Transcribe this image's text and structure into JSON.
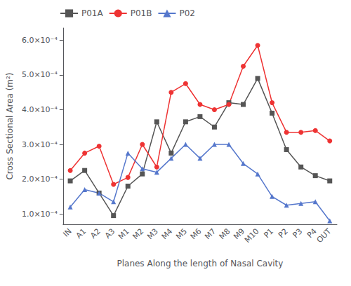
{
  "chart_data": {
    "type": "line",
    "xlabel": "Planes Along the length of Nasal Cavity",
    "ylabel": "Cross Sectional Area (m²)",
    "categories": [
      "IN",
      "A1",
      "A2",
      "A3",
      "M1",
      "M2",
      "M3",
      "M4",
      "M5",
      "M6",
      "M7",
      "M8",
      "M9",
      "M10",
      "P1",
      "P2",
      "P3",
      "P4",
      "OUT"
    ],
    "series": [
      {
        "name": "P01A",
        "color": "#555555",
        "marker": "square",
        "values": [
          0.000195,
          0.000225,
          0.00016,
          9.5e-05,
          0.00018,
          0.000215,
          0.000365,
          0.000275,
          0.000365,
          0.00038,
          0.00035,
          0.00042,
          0.000415,
          0.00049,
          0.00039,
          0.000285,
          0.000235,
          0.00021,
          0.000195
        ]
      },
      {
        "name": "P01B",
        "color": "#ee3333",
        "marker": "circle",
        "values": [
          0.000225,
          0.000275,
          0.000295,
          0.000185,
          0.000205,
          0.0003,
          0.000235,
          0.00045,
          0.000475,
          0.000415,
          0.0004,
          0.000415,
          0.000525,
          0.000585,
          0.00042,
          0.000335,
          0.000335,
          0.00034,
          0.00031
        ]
      },
      {
        "name": "P02",
        "color": "#5577cc",
        "marker": "triangle",
        "values": [
          0.00012,
          0.00017,
          0.00016,
          0.000135,
          0.000275,
          0.00023,
          0.00022,
          0.00026,
          0.0003,
          0.00026,
          0.0003,
          0.0003,
          0.000245,
          0.000215,
          0.00015,
          0.000125,
          0.00013,
          0.000135,
          8e-05
        ]
      }
    ],
    "ylim": [
      7e-05,
      0.000635
    ],
    "yticks": [
      {
        "value": 0.0001,
        "label": "1.0×10⁻⁴"
      },
      {
        "value": 0.0002,
        "label": "2.0×10⁻⁴"
      },
      {
        "value": 0.0003,
        "label": "3.0×10⁻⁴"
      },
      {
        "value": 0.0004,
        "label": "4.0×10⁻⁴"
      },
      {
        "value": 0.0005,
        "label": "5.0×10⁻⁴"
      },
      {
        "value": 0.0006,
        "label": "6.0×10⁻⁴"
      }
    ],
    "grid": false,
    "legend": "upper left"
  }
}
